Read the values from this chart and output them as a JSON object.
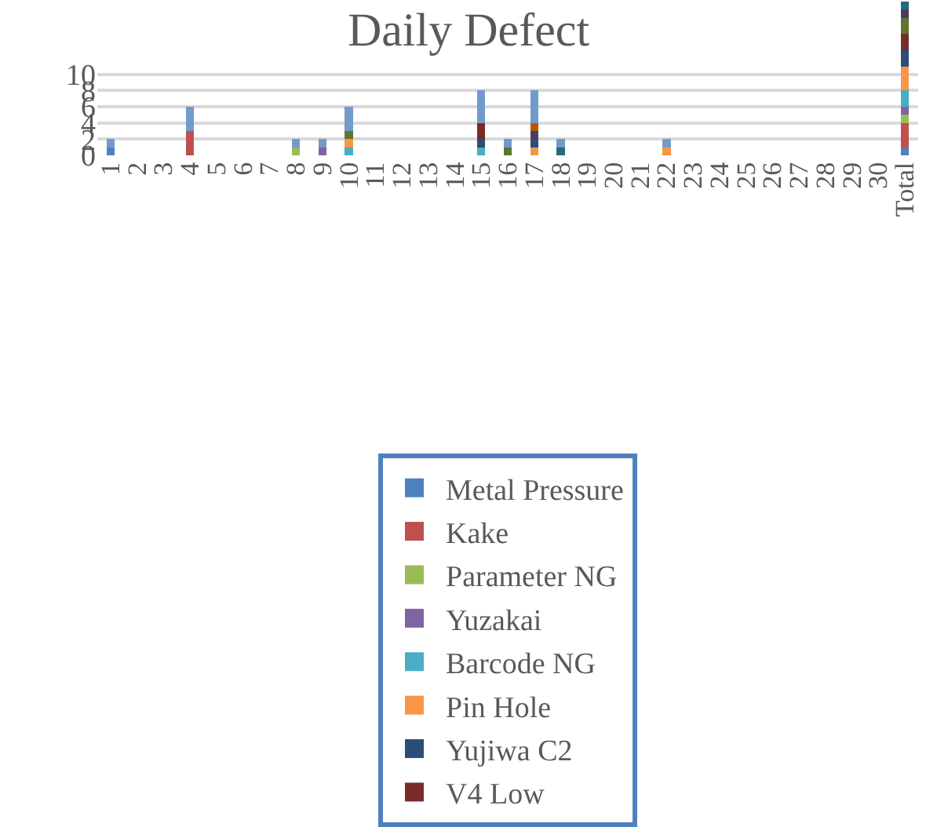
{
  "chart_data": {
    "type": "bar",
    "title": "Daily Defect",
    "stacked": true,
    "grid": "y",
    "legend": "bottom",
    "categories": [
      "1",
      "2",
      "3",
      "4",
      "5",
      "6",
      "7",
      "8",
      "9",
      "10",
      "11",
      "12",
      "13",
      "14",
      "15",
      "16",
      "17",
      "18",
      "19",
      "20",
      "21",
      "22",
      "23",
      "24",
      "25",
      "26",
      "27",
      "28",
      "29",
      "30",
      "Total"
    ],
    "ylim": [
      0,
      19
    ],
    "yticks": [
      0,
      2,
      4,
      6,
      8,
      10
    ],
    "series": [
      {
        "name": "Metal Pressure",
        "color": "#4f81bd",
        "values": [
          1,
          null,
          null,
          null,
          null,
          null,
          null,
          null,
          null,
          null,
          null,
          null,
          null,
          null,
          null,
          null,
          null,
          null,
          null,
          null,
          null,
          null,
          null,
          null,
          null,
          null,
          null,
          null,
          null,
          null,
          1
        ]
      },
      {
        "name": "Kake",
        "color": "#c0504d",
        "values": [
          null,
          null,
          null,
          3,
          null,
          null,
          null,
          null,
          null,
          null,
          null,
          null,
          null,
          null,
          null,
          null,
          null,
          null,
          null,
          null,
          null,
          null,
          null,
          null,
          null,
          null,
          null,
          null,
          null,
          null,
          3
        ]
      },
      {
        "name": "Parameter NG",
        "color": "#9bbb59",
        "values": [
          null,
          null,
          null,
          null,
          null,
          null,
          null,
          1,
          null,
          null,
          null,
          null,
          null,
          null,
          null,
          null,
          null,
          null,
          null,
          null,
          null,
          null,
          null,
          null,
          null,
          null,
          null,
          null,
          null,
          null,
          1
        ]
      },
      {
        "name": "Yuzakai",
        "color": "#8064a2",
        "values": [
          null,
          null,
          null,
          null,
          null,
          null,
          null,
          null,
          1,
          null,
          null,
          null,
          null,
          null,
          null,
          null,
          null,
          null,
          null,
          null,
          null,
          null,
          null,
          null,
          null,
          null,
          null,
          null,
          null,
          null,
          1
        ]
      },
      {
        "name": "Barcode NG",
        "color": "#4bacc6",
        "values": [
          null,
          null,
          null,
          null,
          null,
          null,
          null,
          null,
          null,
          1,
          null,
          null,
          null,
          null,
          1,
          null,
          null,
          null,
          null,
          null,
          null,
          null,
          null,
          null,
          null,
          null,
          null,
          null,
          null,
          null,
          2
        ]
      },
      {
        "name": "Pin Hole",
        "color": "#f79646",
        "values": [
          null,
          null,
          null,
          null,
          null,
          null,
          null,
          null,
          null,
          1,
          null,
          null,
          null,
          null,
          null,
          null,
          1,
          null,
          null,
          null,
          null,
          1,
          null,
          null,
          null,
          null,
          null,
          null,
          null,
          null,
          3
        ]
      },
      {
        "name": "Yujiwa C2",
        "color": "#2c4d75",
        "values": [
          null,
          null,
          null,
          null,
          null,
          null,
          null,
          null,
          null,
          null,
          null,
          null,
          null,
          null,
          1,
          null,
          1,
          null,
          null,
          null,
          null,
          null,
          null,
          null,
          null,
          null,
          null,
          null,
          null,
          null,
          2
        ]
      },
      {
        "name": "V4 Low",
        "color": "#772c2a",
        "values": [
          null,
          null,
          null,
          null,
          null,
          null,
          null,
          null,
          null,
          null,
          null,
          null,
          null,
          null,
          2,
          null,
          null,
          null,
          null,
          null,
          null,
          null,
          null,
          null,
          null,
          null,
          null,
          null,
          null,
          null,
          2
        ]
      },
      {
        "color": "#5f7530",
        "values": [
          null,
          null,
          null,
          null,
          null,
          null,
          null,
          null,
          null,
          1,
          null,
          null,
          null,
          null,
          null,
          1,
          null,
          null,
          null,
          null,
          null,
          null,
          null,
          null,
          null,
          null,
          null,
          null,
          null,
          null,
          2
        ]
      },
      {
        "color": "#4d3b62",
        "values": [
          null,
          null,
          null,
          null,
          null,
          null,
          null,
          null,
          null,
          null,
          null,
          null,
          null,
          null,
          null,
          null,
          1,
          null,
          null,
          null,
          null,
          null,
          null,
          null,
          null,
          null,
          null,
          null,
          null,
          null,
          1
        ]
      },
      {
        "color": "#276a7c",
        "values": [
          null,
          null,
          null,
          null,
          null,
          null,
          null,
          null,
          null,
          null,
          null,
          null,
          null,
          null,
          null,
          null,
          null,
          1,
          null,
          null,
          null,
          null,
          null,
          null,
          null,
          null,
          null,
          null,
          null,
          null,
          1
        ]
      },
      {
        "color": "#b65708",
        "values": [
          null,
          null,
          null,
          null,
          null,
          null,
          null,
          null,
          null,
          null,
          null,
          null,
          null,
          null,
          null,
          null,
          1,
          null,
          null,
          null,
          null,
          null,
          null,
          null,
          null,
          null,
          null,
          null,
          null,
          null,
          null
        ]
      },
      {
        "color": "#729aca",
        "values": [
          1,
          null,
          null,
          3,
          null,
          null,
          null,
          1,
          1,
          3,
          null,
          null,
          null,
          null,
          4,
          1,
          4,
          1,
          null,
          null,
          null,
          1,
          null,
          null,
          null,
          null,
          null,
          null,
          null,
          null,
          null
        ]
      }
    ]
  }
}
